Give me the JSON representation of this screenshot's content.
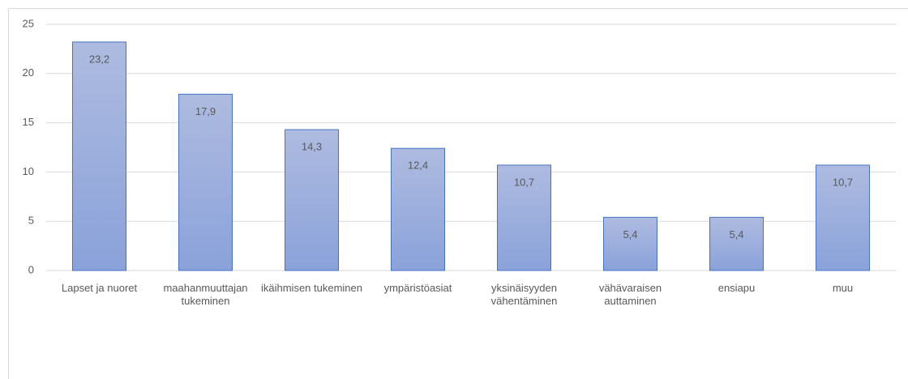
{
  "chart_data": {
    "type": "bar",
    "categories": [
      "Lapset ja nuoret",
      "maahanmuuttajan tukeminen",
      "ikäihmisen tukeminen",
      "ympäristöasiat",
      "yksinäisyyden vähentäminen",
      "vähävaraisen auttaminen",
      "ensiapu",
      "muu"
    ],
    "values": [
      23.2,
      17.9,
      14.3,
      12.4,
      10.7,
      5.4,
      5.4,
      10.7
    ],
    "value_labels": [
      "23,2",
      "17,9",
      "14,3",
      "12,4",
      "10,7",
      "5,4",
      "5,4",
      "10,7"
    ],
    "color": "#8faadc",
    "ylim": [
      0,
      25
    ],
    "yticks": [
      0,
      5,
      10,
      15,
      20,
      25
    ],
    "grid": true
  }
}
